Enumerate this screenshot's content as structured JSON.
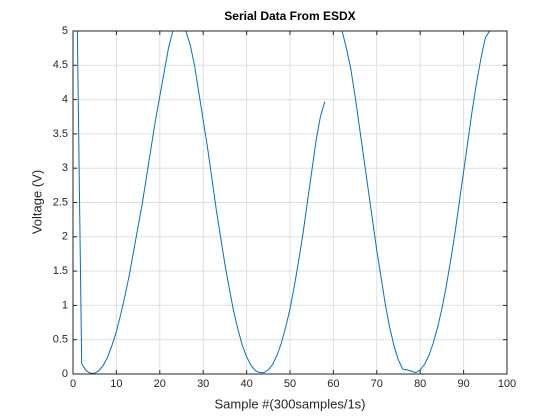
{
  "chart_data": {
    "type": "line",
    "title": "Serial Data From ESDX",
    "xlabel": "Sample #(300samples/1s)",
    "ylabel": "Voltage (V)",
    "x": [
      1,
      2,
      3,
      4,
      5,
      6,
      7,
      8,
      9,
      10,
      11,
      12,
      13,
      14,
      15,
      16,
      17,
      18,
      19,
      20,
      21,
      22,
      23,
      24,
      25,
      26,
      27,
      28,
      29,
      30,
      31,
      32,
      33,
      34,
      35,
      36,
      37,
      38,
      39,
      40,
      41,
      42,
      43,
      44,
      45,
      46,
      47,
      48,
      49,
      50,
      51,
      52,
      53,
      54,
      55,
      56,
      57,
      58,
      59,
      60,
      61,
      62,
      63,
      64,
      65,
      66,
      67,
      68,
      69,
      70,
      71,
      72,
      73,
      74,
      75,
      76,
      77,
      78,
      79,
      80,
      81,
      82,
      83,
      84,
      85,
      86,
      87,
      88,
      89,
      90,
      91,
      92,
      93,
      94,
      95,
      96,
      97
    ],
    "values": [
      5,
      0.15,
      0.05,
      0.01,
      0.01,
      0.05,
      0.13,
      0.25,
      0.42,
      0.62,
      0.87,
      1.15,
      1.45,
      1.8,
      2.15,
      2.5,
      2.9,
      3.3,
      3.7,
      4.05,
      4.4,
      4.75,
      5,
      5,
      5,
      5,
      4.8,
      4.5,
      4.1,
      3.7,
      3.3,
      2.85,
      2.4,
      2.0,
      1.6,
      1.25,
      0.92,
      0.65,
      0.42,
      0.25,
      0.13,
      0.05,
      0.02,
      0.02,
      0.06,
      0.14,
      0.27,
      0.45,
      0.68,
      0.95,
      1.28,
      1.65,
      2.05,
      2.5,
      2.95,
      3.4,
      3.75,
      3.97,
      null,
      null,
      null,
      5,
      4.75,
      4.45,
      4.05,
      3.6,
      3.15,
      2.7,
      2.25,
      1.8,
      1.4,
      1.0,
      0.67,
      0.4,
      0.2,
      0.07,
      0.06,
      0.04,
      0.02,
      0.06,
      0.14,
      0.27,
      0.45,
      0.68,
      0.95,
      1.28,
      1.65,
      2.05,
      2.5,
      2.95,
      3.4,
      3.85,
      4.25,
      4.6,
      4.9,
      5,
      5
    ],
    "color": "#0072bd",
    "xlim": [
      0,
      100
    ],
    "xticks": [
      0,
      10,
      20,
      30,
      40,
      50,
      60,
      70,
      80,
      90,
      100
    ],
    "ylim": [
      0,
      5
    ],
    "yticks": [
      0,
      0.5,
      1,
      1.5,
      2,
      2.5,
      3,
      3.5,
      4,
      4.5,
      5
    ],
    "grid": true
  }
}
